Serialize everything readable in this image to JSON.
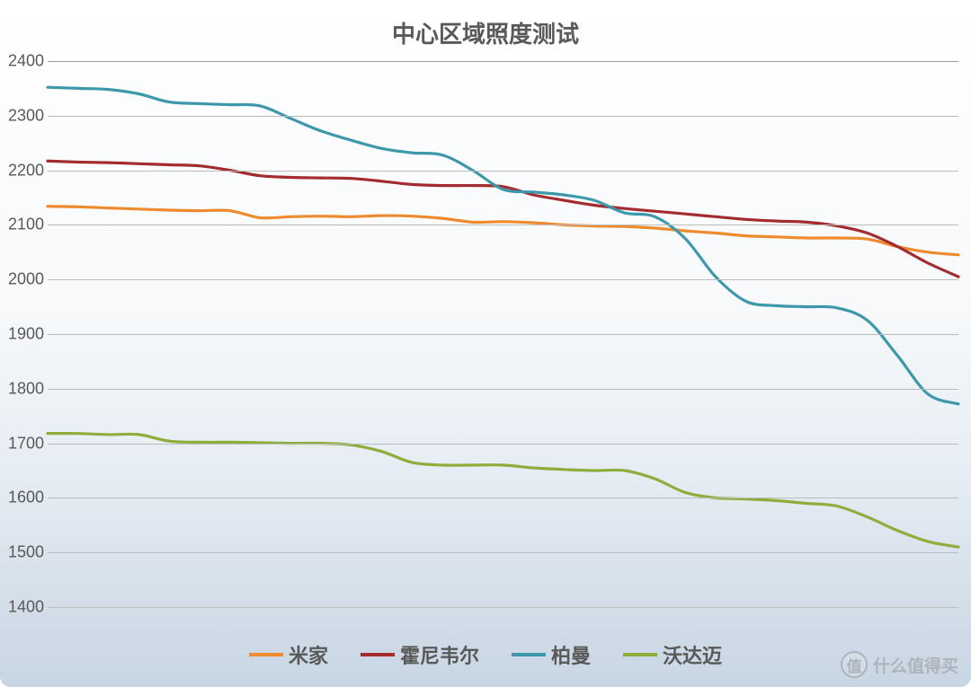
{
  "chart": {
    "type": "line",
    "title": "中心区域照度测试",
    "title_fontsize": 26,
    "title_color": "#595959",
    "background_gradient": [
      "#ffffff",
      "#f7f9fb",
      "#e5ecf3",
      "#c8d5e3"
    ],
    "ylim": [
      1400,
      2400
    ],
    "ytick_step": 100,
    "yticks": [
      2400,
      2300,
      2200,
      2100,
      2000,
      1900,
      1800,
      1700,
      1600,
      1500,
      1400
    ],
    "ytick_fontsize": 18,
    "ytick_color": "#595959",
    "grid_color": "#bcbcbc",
    "grid_color_top": "#9e9e9e",
    "x_count": 31,
    "line_width": 3.2,
    "legend_fontsize": 22,
    "legend_swatch_width": 38,
    "legend_swatch_thickness": 4,
    "series": [
      {
        "name": "米家",
        "color": "#ed8b2e",
        "values": [
          2134,
          2133,
          2131,
          2129,
          2127,
          2126,
          2126,
          2113,
          2115,
          2116,
          2115,
          2117,
          2116,
          2112,
          2105,
          2106,
          2104,
          2100,
          2098,
          2097,
          2094,
          2089,
          2085,
          2080,
          2078,
          2076,
          2076,
          2074,
          2060,
          2050,
          2045
        ]
      },
      {
        "name": "霍尼韦尔",
        "color": "#a32c2e",
        "values": [
          2217,
          2215,
          2214,
          2212,
          2210,
          2208,
          2200,
          2190,
          2187,
          2186,
          2185,
          2180,
          2174,
          2172,
          2172,
          2170,
          2155,
          2145,
          2136,
          2130,
          2125,
          2120,
          2115,
          2110,
          2107,
          2105,
          2098,
          2085,
          2060,
          2030,
          2005
        ]
      },
      {
        "name": "柏曼",
        "color": "#3d98ac",
        "values": [
          2352,
          2350,
          2348,
          2340,
          2325,
          2322,
          2320,
          2318,
          2295,
          2272,
          2255,
          2240,
          2232,
          2228,
          2200,
          2165,
          2160,
          2155,
          2145,
          2122,
          2115,
          2075,
          2005,
          1960,
          1952,
          1950,
          1948,
          1925,
          1860,
          1790,
          1772
        ]
      },
      {
        "name": "沃达迈",
        "color": "#8fad3a",
        "values": [
          1718,
          1718,
          1716,
          1716,
          1704,
          1702,
          1702,
          1701,
          1700,
          1700,
          1697,
          1685,
          1665,
          1660,
          1660,
          1660,
          1655,
          1652,
          1650,
          1650,
          1635,
          1610,
          1600,
          1598,
          1595,
          1590,
          1585,
          1565,
          1540,
          1520,
          1510
        ]
      }
    ]
  },
  "watermark": {
    "badge": "值",
    "text": "什么值得买",
    "color": "#8a8a8a",
    "fontsize": 19
  }
}
